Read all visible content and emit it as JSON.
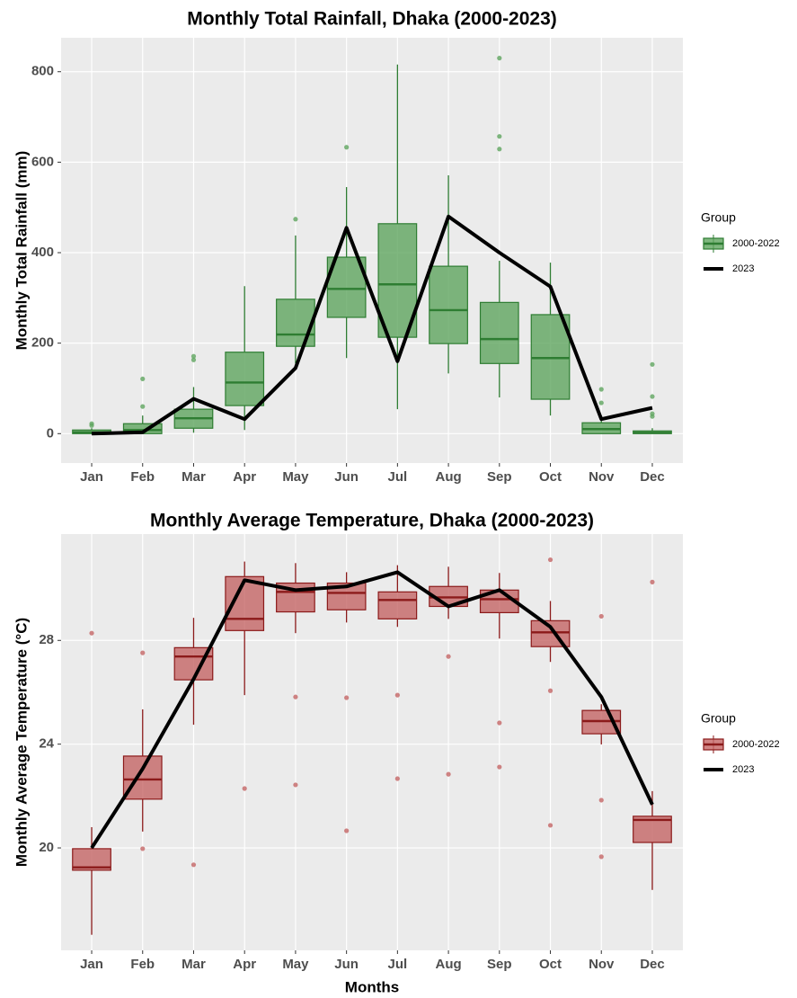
{
  "chart_data": [
    {
      "type": "box",
      "title": "Monthly Total Rainfall, Dhaka (2000-2023)",
      "y_label": "Monthly Total Rainfall (mm)",
      "categories": [
        "Jan",
        "Feb",
        "Mar",
        "Apr",
        "May",
        "Jun",
        "Jul",
        "Aug",
        "Sep",
        "Oct",
        "Nov",
        "Dec"
      ],
      "ylim": [
        -65,
        875
      ],
      "yticks": [
        0,
        200,
        400,
        600,
        800
      ],
      "grid": true,
      "legend_title": "Group",
      "legend_position": "right",
      "series": [
        {
          "name": "2000-2022",
          "type": "box",
          "color": "#2e7d32",
          "fill": "#5fa55f",
          "whisker_low": [
            0,
            0,
            2,
            8,
            155,
            167,
            54,
            133,
            80,
            40,
            0,
            0
          ],
          "q1": [
            0,
            0,
            12,
            62,
            193,
            257,
            213,
            199,
            155,
            76,
            0,
            0
          ],
          "median": [
            3,
            8,
            34,
            113,
            219,
            320,
            330,
            273,
            209,
            167,
            10,
            2
          ],
          "q3": [
            8,
            22,
            54,
            180,
            297,
            390,
            464,
            370,
            290,
            263,
            24,
            6
          ],
          "whisker_high": [
            12,
            40,
            103,
            326,
            438,
            545,
            816,
            571,
            382,
            378,
            40,
            12
          ],
          "outliers": [
            [
              22,
              18
            ],
            [
              60,
              121
            ],
            [
              171,
              163
            ],
            [],
            [
              474
            ],
            [
              633
            ],
            [],
            [],
            [
              830,
              657,
              629
            ],
            [],
            [
              98,
              68
            ],
            [
              153,
              82,
              44,
              38
            ]
          ]
        },
        {
          "name": "2023",
          "type": "line",
          "color": "#000000",
          "values": [
            0,
            3,
            77,
            32,
            145,
            455,
            160,
            480,
            400,
            325,
            32,
            57
          ]
        }
      ]
    },
    {
      "type": "box",
      "title": "Monthly Average Temperature, Dhaka (2000-2023)",
      "y_label": "Monthly Average Temperature (°C)",
      "x_label": "Months",
      "categories": [
        "Jan",
        "Feb",
        "Mar",
        "Apr",
        "May",
        "Jun",
        "Jul",
        "Aug",
        "Sep",
        "Oct",
        "Nov",
        "Dec"
      ],
      "ylim": [
        16.05,
        32.1
      ],
      "yticks": [
        20,
        24,
        28
      ],
      "grid": true,
      "legend_title": "Group",
      "legend_position": "right",
      "series": [
        {
          "name": "2000-2022",
          "type": "box",
          "color": "#8b1a1a",
          "fill": "#c46565",
          "whisker_low": [
            16.65,
            20.63,
            24.75,
            25.89,
            28.28,
            28.69,
            28.52,
            28.83,
            28.07,
            27.17,
            23.99,
            18.38
          ],
          "q1": [
            19.14,
            21.88,
            26.48,
            28.38,
            29.1,
            29.18,
            28.83,
            29.31,
            29.07,
            27.76,
            24.4,
            20.21
          ],
          "median": [
            19.25,
            22.64,
            27.38,
            28.83,
            29.87,
            29.83,
            29.56,
            29.66,
            29.59,
            28.31,
            24.89,
            21.08
          ],
          "q3": [
            19.97,
            23.54,
            27.72,
            30.46,
            30.21,
            30.21,
            29.87,
            30.08,
            29.94,
            28.76,
            25.3,
            21.22
          ],
          "whisker_high": [
            20.8,
            25.34,
            28.87,
            31.04,
            30.98,
            30.63,
            30.9,
            30.84,
            30.6,
            29.52,
            25.54,
            22.19
          ],
          "outliers": [
            [
              28.28
            ],
            [
              27.52,
              19.97
            ],
            [
              19.35
            ],
            [
              22.29
            ],
            [
              25.82,
              22.43
            ],
            [
              25.79,
              20.66
            ],
            [
              25.89,
              22.67
            ],
            [
              27.38,
              22.84
            ],
            [
              24.82,
              23.12
            ],
            [
              31.11,
              26.06,
              20.87
            ],
            [
              28.93,
              21.84,
              19.66
            ],
            [
              30.25
            ]
          ]
        },
        {
          "name": "2023",
          "type": "line",
          "color": "#000000",
          "values": [
            20.0,
            23.05,
            26.51,
            30.32,
            29.94,
            30.08,
            30.63,
            29.31,
            29.94,
            28.52,
            25.82,
            21.67
          ]
        }
      ]
    }
  ]
}
